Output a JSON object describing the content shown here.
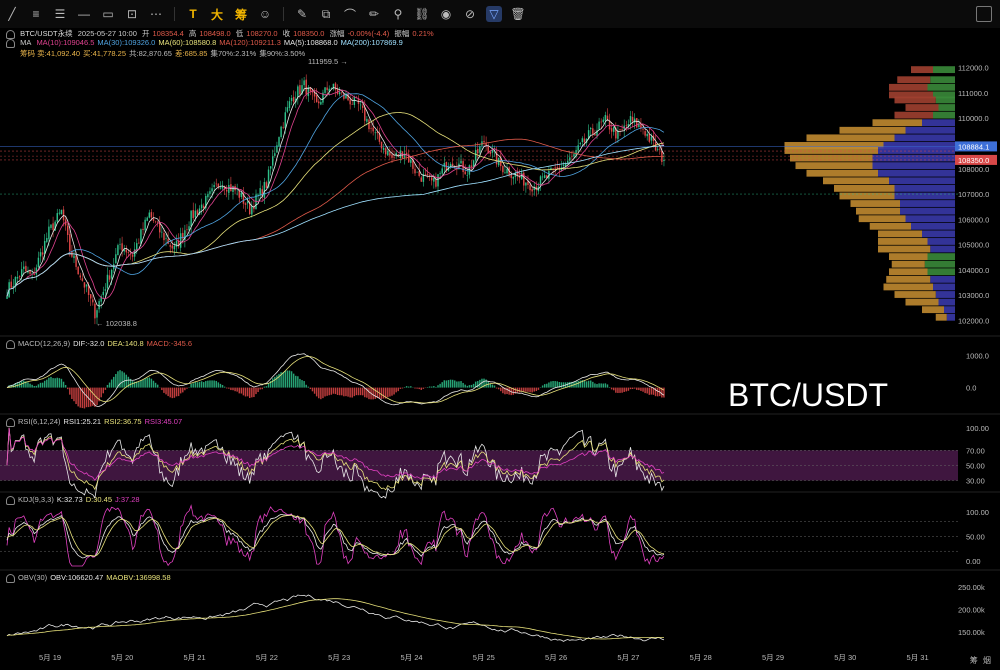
{
  "toolbar": {
    "items": [
      {
        "icon": "line-tool-icon",
        "glyph": "╱"
      },
      {
        "icon": "hamburger-icon",
        "glyph": "≡"
      },
      {
        "icon": "fib-icon",
        "glyph": "☰"
      },
      {
        "icon": "h-line-icon",
        "glyph": "—"
      },
      {
        "icon": "rect-icon",
        "glyph": "▭"
      },
      {
        "icon": "measure-icon",
        "glyph": "⊡"
      },
      {
        "icon": "dots-icon",
        "glyph": "⋯"
      },
      {
        "icon": "text-icon",
        "glyph": "T",
        "text": true
      },
      {
        "icon": "big-icon",
        "glyph": "大",
        "text": true
      },
      {
        "icon": "chip-icon",
        "glyph": "筹",
        "text": true
      },
      {
        "icon": "emoji-icon",
        "glyph": "☺"
      },
      {
        "icon": "brush-icon",
        "glyph": "✎"
      },
      {
        "icon": "layers-icon",
        "glyph": "⧉"
      },
      {
        "icon": "magnet-icon",
        "glyph": "⌒"
      },
      {
        "icon": "pencil-icon",
        "glyph": "✏"
      },
      {
        "icon": "link-icon",
        "glyph": "⚲"
      },
      {
        "icon": "compare-icon",
        "glyph": "⛓"
      },
      {
        "icon": "eye-icon",
        "glyph": "◉"
      },
      {
        "icon": "lock-icon",
        "glyph": "⊘"
      },
      {
        "icon": "filter-icon",
        "glyph": "▽",
        "active": true
      },
      {
        "icon": "trash-icon",
        "glyph": "🗑"
      }
    ]
  },
  "header": {
    "symbol": "BTC/USDT永续",
    "datetime": "2025-05-27 10:00",
    "open_label": "开",
    "open": "108354.4",
    "high_label": "高",
    "high": "108498.0",
    "low_label": "低",
    "low": "108270.0",
    "close_label": "收",
    "close": "108350.0",
    "change_label": "涨幅",
    "change": "-0.00%(-4.4)",
    "amp_label": "振幅",
    "amp": "0.21%"
  },
  "ma_line": {
    "label": "MA",
    "items": [
      {
        "text": "MA(10):109046.5",
        "color": "#e0428f"
      },
      {
        "text": "MA(30):109326.0",
        "color": "#4fa3e0"
      },
      {
        "text": "MA(60):108580.8",
        "color": "#e6e07a"
      },
      {
        "text": "MA(120):109211.3",
        "color": "#e05a4a"
      },
      {
        "text": "MA(5):108868.0",
        "color": "#e8e8e8"
      },
      {
        "text": "MA(200):107869.9",
        "color": "#9fe0ff"
      }
    ]
  },
  "chip_line": {
    "items": [
      {
        "text": "筹码 卖:41,092.40",
        "color": "#e8b34a"
      },
      {
        "text": "买:41,778.25",
        "color": "#e8b34a"
      },
      {
        "text": "共:82,870.65",
        "color": "#bbbbbb"
      },
      {
        "text": "差:685.85",
        "color": "#e8b34a"
      },
      {
        "text": "集70%:2.31%",
        "color": "#bbbbbb"
      },
      {
        "text": "集90%:3.50%",
        "color": "#bbbbbb"
      }
    ]
  },
  "indicators": {
    "macd": {
      "label": "MACD(12,26,9)",
      "items": [
        {
          "text": "DIF:-32.0",
          "color": "#e8e8e8"
        },
        {
          "text": "DEA:140.8",
          "color": "#e6e07a"
        },
        {
          "text": "MACD:-345.6",
          "color": "#e05a4a"
        }
      ]
    },
    "rsi": {
      "label": "RSI(6,12,24)",
      "items": [
        {
          "text": "RSI1:25.21",
          "color": "#e8e8e8"
        },
        {
          "text": "RSI2:36.75",
          "color": "#e6e07a"
        },
        {
          "text": "RSI3:45.07",
          "color": "#e040c0"
        }
      ]
    },
    "kdj": {
      "label": "KDJ(9,3,3)",
      "items": [
        {
          "text": "K:32.73",
          "color": "#e8e8e8"
        },
        {
          "text": "D:30.45",
          "color": "#e6e07a"
        },
        {
          "text": "J:37.28",
          "color": "#e040c0"
        }
      ]
    },
    "obv": {
      "label": "OBV(30)",
      "items": [
        {
          "text": "OBV:106620.47",
          "color": "#e8e8e8"
        },
        {
          "text": "MAOBV:136998.58",
          "color": "#e6e07a"
        }
      ]
    }
  },
  "watermark": "BTC/USDT",
  "annotations": {
    "high_mark": "111959.5 →",
    "low_mark": "← 102038.8"
  },
  "price_tags": [
    {
      "value": 108884.1,
      "text": "108884.1",
      "bg": "#3d6fd8"
    },
    {
      "value": 108350.0,
      "text": "108350.0",
      "bg": "#d84848"
    }
  ],
  "footer_right": {
    "a": "筹",
    "b": "烟"
  },
  "colors": {
    "up": "#2ec08a",
    "down": "#e04848"
  },
  "chart_data": {
    "type": "candlestick",
    "x_ticks": [
      "5月 19",
      "5月 20",
      "5月 21",
      "5月 22",
      "5月 23",
      "5月 24",
      "5月 25",
      "5月 26",
      "5月 27",
      "5月 28",
      "5月 29",
      "5月 30",
      "5月 31"
    ],
    "main": {
      "yticks": [
        102000,
        103000,
        104000,
        105000,
        106000,
        107000,
        108000,
        109000,
        110000,
        111000,
        112000
      ],
      "ytick_labels": [
        "102000.0",
        "103000.0",
        "104000.0",
        "105000.0",
        "106000.0",
        "107000.0",
        "108000.0",
        "109000.0",
        "110000.0",
        "111000.0",
        "112000.0"
      ],
      "ylim": [
        101500,
        112700
      ],
      "close_anchors": [
        [
          0,
          103200
        ],
        [
          8,
          104000
        ],
        [
          12,
          103700
        ],
        [
          20,
          105500
        ],
        [
          26,
          106300
        ],
        [
          30,
          104800
        ],
        [
          38,
          103200
        ],
        [
          42,
          102300
        ],
        [
          48,
          103600
        ],
        [
          54,
          105000
        ],
        [
          60,
          104600
        ],
        [
          68,
          106200
        ],
        [
          74,
          105400
        ],
        [
          80,
          104800
        ],
        [
          88,
          106100
        ],
        [
          96,
          106800
        ],
        [
          102,
          107500
        ],
        [
          110,
          107100
        ],
        [
          116,
          106400
        ],
        [
          124,
          107400
        ],
        [
          130,
          109400
        ],
        [
          136,
          110800
        ],
        [
          142,
          111300
        ],
        [
          148,
          110500
        ],
        [
          154,
          111300
        ],
        [
          160,
          110900
        ],
        [
          168,
          110500
        ],
        [
          176,
          109300
        ],
        [
          184,
          108400
        ],
        [
          190,
          108700
        ],
        [
          196,
          107800
        ],
        [
          204,
          107400
        ],
        [
          212,
          108400
        ],
        [
          220,
          107900
        ],
        [
          228,
          109100
        ],
        [
          236,
          108100
        ],
        [
          244,
          107700
        ],
        [
          252,
          107300
        ],
        [
          260,
          107800
        ],
        [
          270,
          108400
        ],
        [
          278,
          109300
        ],
        [
          286,
          109900
        ],
        [
          292,
          109300
        ],
        [
          298,
          109900
        ],
        [
          304,
          109600
        ],
        [
          310,
          108800
        ],
        [
          314,
          108350
        ]
      ],
      "candles": 315,
      "overlays": [
        {
          "name": "MA5",
          "color": "#e8e8e8",
          "period": 5
        },
        {
          "name": "MA10",
          "color": "#e0428f",
          "period": 10
        },
        {
          "name": "MA30",
          "color": "#4fa3e0",
          "period": 30
        },
        {
          "name": "MA60",
          "color": "#e6e07a",
          "period": 60
        },
        {
          "name": "MA120",
          "color": "#e05a4a",
          "period": 120
        },
        {
          "name": "MA200",
          "color": "#9fe0ff",
          "period": 200
        }
      ],
      "volume_profile": {
        "levels": [
          111900,
          111500,
          111200,
          110900,
          110700,
          110400,
          110100,
          109800,
          109500,
          109200,
          108900,
          108700,
          108400,
          108100,
          107800,
          107500,
          107200,
          106900,
          106600,
          106300,
          106000,
          105700,
          105400,
          105100,
          104800,
          104500,
          104200,
          103900,
          103600,
          103300,
          103000,
          102700,
          102400,
          102100
        ],
        "sell": [
          40,
          60,
          70,
          80,
          75,
          60,
          70,
          90,
          120,
          160,
          180,
          170,
          150,
          140,
          130,
          120,
          110,
          100,
          90,
          80,
          85,
          75,
          80,
          90,
          95,
          70,
          60,
          70,
          80,
          90,
          75,
          60,
          40,
          20
        ],
        "buy": [
          40,
          45,
          50,
          40,
          35,
          30,
          40,
          60,
          90,
          110,
          130,
          140,
          150,
          150,
          140,
          120,
          110,
          110,
          100,
          100,
          90,
          80,
          60,
          50,
          45,
          50,
          55,
          50,
          45,
          40,
          35,
          30,
          20,
          15
        ],
        "buy_colors": [
          "#3a8a3a",
          "#3a8a3a",
          "#3a8a3a",
          "#3a8a3a",
          "#3a8a3a",
          "#3a8a3a",
          "#3a8a3a",
          "#3838a8",
          "#3838a8",
          "#3838a8",
          "#3838a8",
          "#3838a8",
          "#3838a8",
          "#3838a8",
          "#3838a8",
          "#3838a8",
          "#3838a8",
          "#3838a8",
          "#3838a8",
          "#3838a8",
          "#3838a8",
          "#3838a8",
          "#3838a8",
          "#3838a8",
          "#3838a8",
          "#3a8a3a",
          "#3a8a3a",
          "#3a8a3a",
          "#3838a8",
          "#3838a8",
          "#3838a8",
          "#3838a8",
          "#3838a8",
          "#3838a8"
        ],
        "sell_colors_top": "#a04030",
        "sell_colors": "#c08a30"
      }
    },
    "macd": {
      "yticks": [
        0,
        1000
      ],
      "ytick_labels": [
        "0.0",
        "1000.0"
      ],
      "ylim": [
        -700,
        1300
      ]
    },
    "rsi": {
      "yticks": [
        30,
        50,
        70,
        100
      ],
      "ytick_labels": [
        "30.00",
        "50.00",
        "70.00",
        "100.00"
      ],
      "ylim": [
        20,
        105
      ],
      "band": [
        30,
        70
      ]
    },
    "kdj": {
      "yticks": [
        0,
        50,
        100
      ],
      "ytick_labels": [
        "0.00",
        "50.00",
        "100.00"
      ],
      "ylim": [
        -10,
        120
      ],
      "dashed": [
        20,
        50,
        80
      ]
    },
    "obv": {
      "yticks": [
        150000,
        200000,
        250000
      ],
      "ytick_labels": [
        "150.00k",
        "200.00k",
        "250.00k"
      ],
      "ylim": [
        125000,
        265000
      ]
    }
  }
}
